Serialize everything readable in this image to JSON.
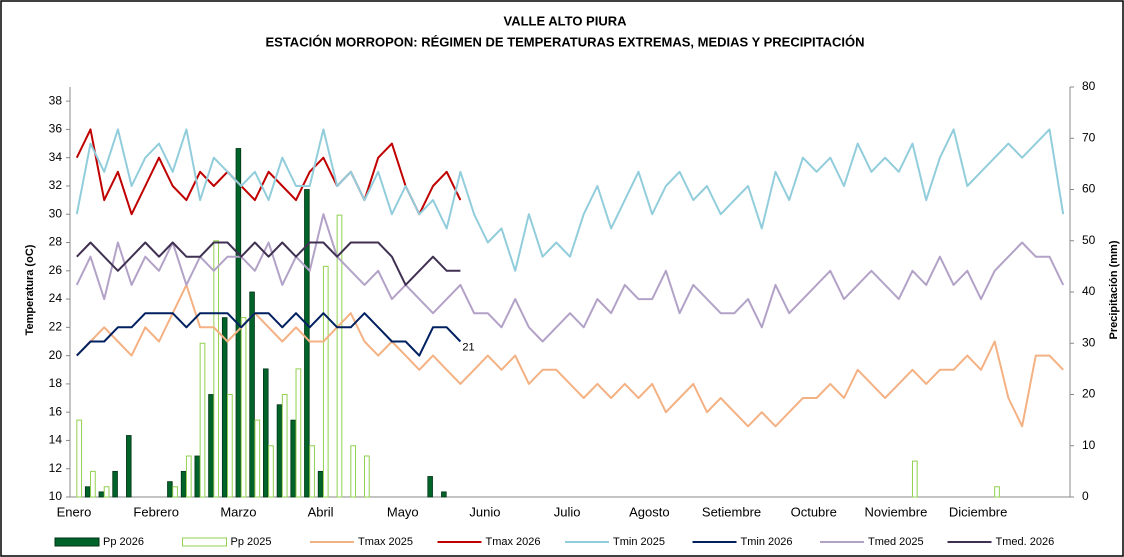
{
  "chart_data": {
    "type": "line",
    "title": "VALLE  ALTO PIURA",
    "subtitle": "ESTACIÓN MORROPON: RÉGIMEN DE TEMPERATURAS EXTREMAS, MEDIAS Y PRECIPITACIÓN",
    "y_label": "Temperatura (oC)",
    "y2_label": "Precipitación (mm)",
    "categories": [
      "Enero",
      null,
      null,
      null,
      null,
      null,
      "Febrero",
      null,
      null,
      null,
      null,
      null,
      "Marzo",
      null,
      null,
      null,
      null,
      null,
      "Abril",
      null,
      null,
      null,
      null,
      null,
      "Mayo",
      null,
      null,
      null,
      null,
      null,
      "Junio",
      null,
      null,
      null,
      null,
      null,
      "Julio",
      null,
      null,
      null,
      null,
      null,
      "Agosto",
      null,
      null,
      null,
      null,
      null,
      "Setiembre",
      null,
      null,
      null,
      null,
      null,
      "Octubre",
      null,
      null,
      null,
      null,
      null,
      "Noviembre",
      null,
      null,
      null,
      null,
      null,
      "Diciembre",
      null,
      null,
      null,
      null,
      null,
      null
    ],
    "ylim": [
      10,
      39
    ],
    "yticks": [
      10,
      12,
      14,
      16,
      18,
      20,
      22,
      24,
      26,
      28,
      30,
      32,
      34,
      36,
      38
    ],
    "y2lim": [
      0,
      80
    ],
    "y2ticks": [
      0,
      10,
      20,
      30,
      40,
      50,
      60,
      70,
      80
    ],
    "grid": false,
    "legend": "bottom",
    "series": [
      {
        "name": "Pp 2026",
        "type": "bar",
        "axis": "y2",
        "color": "#00642a",
        "values": [
          0,
          2,
          1,
          5,
          12,
          0,
          0,
          3,
          5,
          8,
          20,
          35,
          68,
          40,
          25,
          18,
          15,
          60,
          5,
          0,
          0,
          0,
          0,
          0,
          0,
          0,
          4,
          1,
          0,
          null,
          null,
          null,
          null,
          null,
          null,
          null,
          null,
          null,
          null,
          null,
          null,
          null,
          null,
          null,
          null,
          null,
          null,
          null,
          null,
          null,
          null,
          null,
          null,
          null,
          null,
          null,
          null,
          null,
          null,
          null,
          null,
          null,
          null,
          null,
          null,
          null,
          null,
          null,
          null,
          null,
          null,
          null,
          null
        ]
      },
      {
        "name": "Pp 2025",
        "type": "bar",
        "axis": "y2",
        "color": "#92d050",
        "values": [
          15,
          5,
          2,
          0,
          0,
          0,
          0,
          2,
          8,
          30,
          50,
          20,
          35,
          15,
          10,
          20,
          25,
          10,
          45,
          55,
          10,
          8,
          0,
          0,
          0,
          0,
          0,
          0,
          0,
          0,
          0,
          0,
          0,
          0,
          0,
          0,
          0,
          0,
          0,
          0,
          0,
          0,
          0,
          0,
          0,
          0,
          0,
          0,
          0,
          0,
          0,
          0,
          0,
          0,
          0,
          0,
          0,
          0,
          0,
          0,
          0,
          7,
          0,
          0,
          0,
          0,
          0,
          2,
          0,
          0,
          0,
          0,
          0
        ]
      },
      {
        "name": "Tmax 2025",
        "color": "#f4b183",
        "values": [
          20,
          21,
          22,
          21,
          20,
          22,
          21,
          23,
          25,
          22,
          22,
          21,
          22,
          23,
          22,
          21,
          22,
          21,
          21,
          22,
          23,
          21,
          20,
          21,
          20,
          19,
          20,
          19,
          18,
          19,
          20,
          19,
          20,
          18,
          19,
          19,
          18,
          17,
          18,
          17,
          18,
          17,
          18,
          16,
          17,
          18,
          16,
          17,
          16,
          15,
          16,
          15,
          16,
          17,
          17,
          18,
          17,
          19,
          18,
          17,
          18,
          19,
          18,
          19,
          19,
          20,
          19,
          21,
          17,
          15,
          20,
          20,
          19
        ]
      },
      {
        "name": "Tmax 2026",
        "color": "#c00000",
        "values": [
          34,
          36,
          31,
          33,
          30,
          32,
          34,
          32,
          31,
          33,
          32,
          33,
          32,
          31,
          33,
          32,
          31,
          33,
          34,
          32,
          33,
          31,
          34,
          35,
          32,
          30,
          32,
          33,
          31,
          null,
          null,
          null,
          null,
          null,
          null,
          null,
          null,
          null,
          null,
          null,
          null,
          null,
          null,
          null,
          null,
          null,
          null,
          null,
          null,
          null,
          null,
          null,
          null,
          null,
          null,
          null,
          null,
          null,
          null,
          null,
          null,
          null,
          null,
          null,
          null,
          null,
          null,
          null,
          null,
          null,
          null,
          null,
          null
        ]
      },
      {
        "name": "Tmin 2025",
        "color": "#92cddc",
        "values": [
          30,
          35,
          33,
          36,
          32,
          34,
          35,
          33,
          36,
          31,
          34,
          33,
          32,
          33,
          31,
          34,
          32,
          32,
          36,
          32,
          33,
          31,
          33,
          30,
          32,
          30,
          31,
          29,
          33,
          30,
          28,
          29,
          26,
          30,
          27,
          28,
          27,
          30,
          32,
          29,
          31,
          33,
          30,
          32,
          33,
          31,
          32,
          30,
          31,
          32,
          29,
          33,
          31,
          34,
          33,
          34,
          32,
          35,
          33,
          34,
          33,
          35,
          31,
          34,
          36,
          32,
          33,
          34,
          35,
          34,
          35,
          36,
          30
        ]
      },
      {
        "name": "Tmin 2026",
        "color": "#002060",
        "values": [
          20,
          21,
          21,
          22,
          22,
          23,
          23,
          23,
          22,
          23,
          23,
          23,
          22,
          23,
          23,
          22,
          23,
          22,
          23,
          22,
          22,
          23,
          22,
          21,
          21,
          20,
          22,
          22,
          21,
          null,
          null,
          null,
          null,
          null,
          null,
          null,
          null,
          null,
          null,
          null,
          null,
          null,
          null,
          null,
          null,
          null,
          null,
          null,
          null,
          null,
          null,
          null,
          null,
          null,
          null,
          null,
          null,
          null,
          null,
          null,
          null,
          null,
          null,
          null,
          null,
          null,
          null,
          null,
          null,
          null,
          null,
          null,
          null
        ],
        "value_labels": [
          null,
          null,
          null,
          null,
          null,
          null,
          null,
          null,
          null,
          null,
          null,
          null,
          null,
          null,
          null,
          null,
          null,
          null,
          null,
          null,
          null,
          null,
          null,
          null,
          null,
          null,
          null,
          null,
          "21",
          null,
          null,
          null,
          null,
          null,
          null,
          null,
          null,
          null,
          null,
          null,
          null,
          null,
          null,
          null,
          null,
          null,
          null,
          null,
          null,
          null,
          null,
          null,
          null,
          null,
          null,
          null,
          null,
          null,
          null,
          null,
          null,
          null,
          null,
          null,
          null,
          null,
          null,
          null,
          null,
          null,
          null,
          null,
          null
        ]
      },
      {
        "name": "Tmed 2025",
        "color": "#b3a2c7",
        "values": [
          25,
          27,
          24,
          28,
          25,
          27,
          26,
          28,
          25,
          27,
          26,
          27,
          27,
          26,
          28,
          25,
          27,
          26,
          30,
          27,
          26,
          25,
          26,
          24,
          25,
          24,
          23,
          24,
          25,
          23,
          23,
          22,
          24,
          22,
          21,
          22,
          23,
          22,
          24,
          23,
          25,
          24,
          24,
          26,
          23,
          25,
          24,
          23,
          23,
          24,
          22,
          25,
          23,
          24,
          25,
          26,
          24,
          25,
          26,
          25,
          24,
          26,
          25,
          27,
          25,
          26,
          24,
          26,
          27,
          28,
          27,
          27,
          25
        ]
      },
      {
        "name": "Tmed. 2026",
        "color": "#403152",
        "values": [
          27,
          28,
          27,
          26,
          27,
          28,
          27,
          28,
          27,
          27,
          28,
          28,
          27,
          28,
          27,
          28,
          27,
          28,
          28,
          27,
          28,
          28,
          28,
          27,
          25,
          26,
          27,
          26,
          26,
          null,
          null,
          null,
          null,
          null,
          null,
          null,
          null,
          null,
          null,
          null,
          null,
          null,
          null,
          null,
          null,
          null,
          null,
          null,
          null,
          null,
          null,
          null,
          null,
          null,
          null,
          null,
          null,
          null,
          null,
          null,
          null,
          null,
          null,
          null,
          null,
          null,
          null,
          null,
          null,
          null,
          null,
          null,
          null
        ]
      }
    ]
  }
}
